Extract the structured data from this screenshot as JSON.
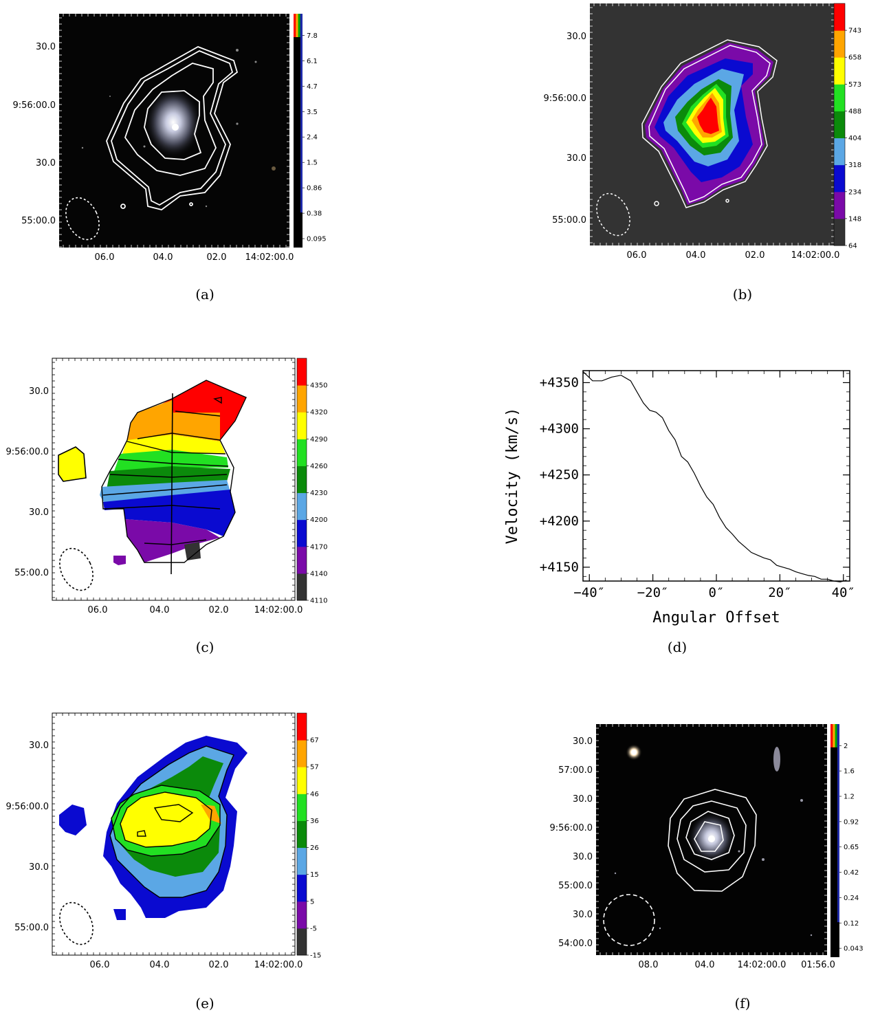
{
  "panels": {
    "a": {
      "caption": "(a)",
      "y_ticks": [
        "30.0",
        "9:56:00.0",
        "30.0",
        "55:00.0"
      ],
      "x_ticks": [
        "06.0",
        "04.0",
        "02.0",
        "14:02:00.0"
      ],
      "colorbar": [
        "7.8",
        "6.1",
        "4.7",
        "3.5",
        "2.4",
        "1.5",
        "0.86",
        "0.38",
        "0.095"
      ]
    },
    "b": {
      "caption": "(b)",
      "y_ticks": [
        "30.0",
        "9:56:00.0",
        "30.0",
        "55:00.0"
      ],
      "x_ticks": [
        "06.0",
        "04.0",
        "02.0",
        "14:02:00.0"
      ],
      "colorbar": [
        "743",
        "658",
        "573",
        "488",
        "404",
        "318",
        "234",
        "148",
        "64"
      ]
    },
    "c": {
      "caption": "(c)",
      "y_ticks": [
        "30.0",
        "9:56:00.0",
        "30.0",
        "55:00.0"
      ],
      "x_ticks": [
        "06.0",
        "04.0",
        "02.0",
        "14:02:00.0"
      ],
      "colorbar": [
        "4350",
        "4320",
        "4290",
        "4260",
        "4230",
        "4200",
        "4170",
        "4140",
        "4110"
      ]
    },
    "e": {
      "caption": "(e)",
      "y_ticks": [
        "30.0",
        "9:56:00.0",
        "30.0",
        "55:00.0"
      ],
      "x_ticks": [
        "06.0",
        "04.0",
        "02.0",
        "14:02:00.0"
      ],
      "colorbar": [
        "67",
        "57",
        "46",
        "36",
        "26",
        "15",
        "5",
        "-5",
        "-15"
      ]
    },
    "f": {
      "caption": "(f)",
      "y_ticks": [
        "30.0",
        "57:00.0",
        "30.0",
        "9:56:00.0",
        "30.0",
        "55:00.0",
        "30.0",
        "54:00.0"
      ],
      "x_ticks": [
        "08.0",
        "04.0",
        "14:02:00.0",
        "01:56.0"
      ],
      "colorbar": [
        "2",
        "1.6",
        "1.2",
        "0.92",
        "0.65",
        "0.42",
        "0.24",
        "0.12",
        "0.043"
      ]
    }
  },
  "colors": {
    "bins9": [
      "#333333",
      "#7a0aa8",
      "#0a0ad0",
      "#5ba7e5",
      "#0b8a0b",
      "#22e022",
      "#ffff00",
      "#ffa500",
      "#ff0000"
    ],
    "hot_bar": [
      "#000000",
      "#1a1a4a",
      "#2020a0",
      "#4040e0",
      "#0000ff",
      "#00aa00",
      "#ffa500",
      "#ff0000"
    ]
  },
  "chart_data": [
    {
      "panel": "d",
      "caption": "(d)",
      "type": "line",
      "xlabel": "Angular Offset",
      "ylabel": "Velocity (km/s)",
      "x_tick_labels": [
        "−40″",
        "−20″",
        "0″",
        "20″",
        "40″"
      ],
      "y_tick_labels": [
        "+4150",
        "+4200",
        "+4250",
        "+4300",
        "+4350"
      ],
      "x_ticks": [
        -40,
        -20,
        0,
        20,
        40
      ],
      "y_ticks": [
        4150,
        4200,
        4250,
        4300,
        4350
      ],
      "xlim": [
        -42,
        42
      ],
      "ylim": [
        4135,
        4363
      ],
      "series": [
        {
          "x": [
            -42,
            -39,
            -36,
            -33,
            -30,
            -27,
            -25,
            -23,
            -21,
            -19,
            -17,
            -15,
            -13,
            -11,
            -9,
            -7,
            -5,
            -3,
            -1,
            1,
            3,
            5,
            7,
            9,
            11,
            13,
            15,
            17,
            19,
            21,
            23,
            25,
            27,
            29,
            31,
            33,
            35,
            37,
            39,
            41
          ],
          "y": [
            4362,
            4352,
            4352,
            4356,
            4358,
            4352,
            4340,
            4328,
            4320,
            4318,
            4312,
            4298,
            4288,
            4270,
            4264,
            4252,
            4238,
            4226,
            4218,
            4204,
            4193,
            4186,
            4178,
            4172,
            4166,
            4163,
            4160,
            4158,
            4152,
            4150,
            4148,
            4145,
            4143,
            4141,
            4140,
            4137,
            4137,
            4135,
            4134,
            4136
          ]
        }
      ]
    }
  ]
}
